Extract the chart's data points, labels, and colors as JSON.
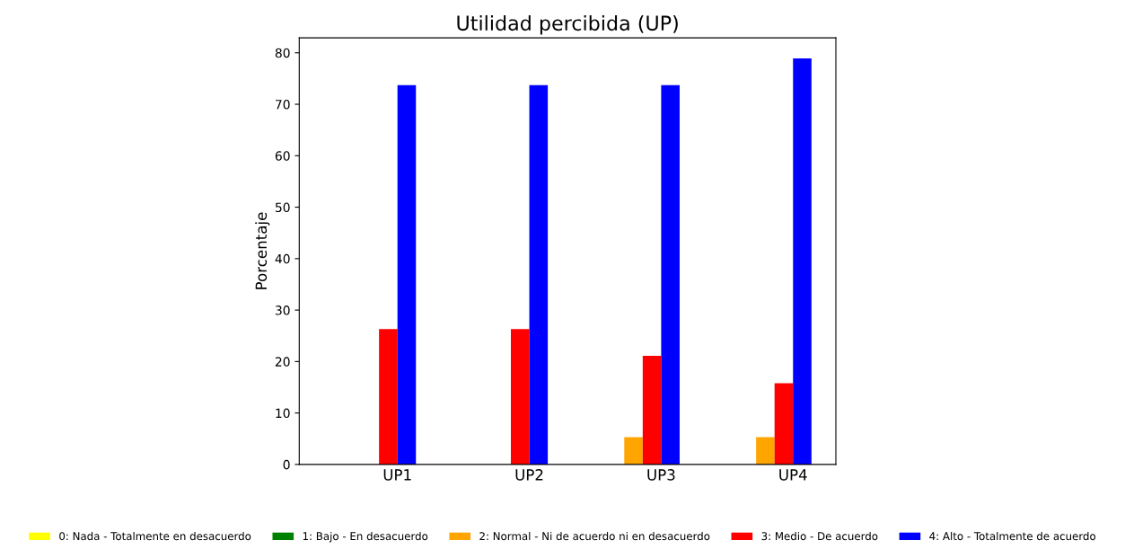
{
  "chart_data": {
    "type": "bar",
    "title": "Utilidad percibida (UP)",
    "ylabel": "Porcentaje",
    "categories": [
      "UP1",
      "UP2",
      "UP3",
      "UP4"
    ],
    "series": [
      {
        "name": "0: Nada - Totalmente en desacuerdo",
        "color": "#ffff00",
        "values": [
          0,
          0,
          0,
          0
        ]
      },
      {
        "name": "1: Bajo - En desacuerdo",
        "color": "#008000",
        "values": [
          0,
          0,
          0,
          0
        ]
      },
      {
        "name": "2: Normal - Ni de acuerdo ni en desacuerdo",
        "color": "#ffa500",
        "values": [
          0,
          0,
          5.3,
          5.3
        ]
      },
      {
        "name": "3: Medio - De acuerdo",
        "color": "#ff0000",
        "values": [
          26.3,
          26.3,
          21.1,
          15.8
        ]
      },
      {
        "name": "4: Alto - Totalmente de acuerdo",
        "color": "#0000ff",
        "values": [
          73.7,
          73.7,
          73.7,
          78.9
        ]
      }
    ],
    "ylim": [
      0,
      82.9
    ],
    "yticks": [
      0,
      10,
      20,
      30,
      40,
      50,
      60,
      70,
      80
    ],
    "legend": "bottom",
    "grid": false
  }
}
